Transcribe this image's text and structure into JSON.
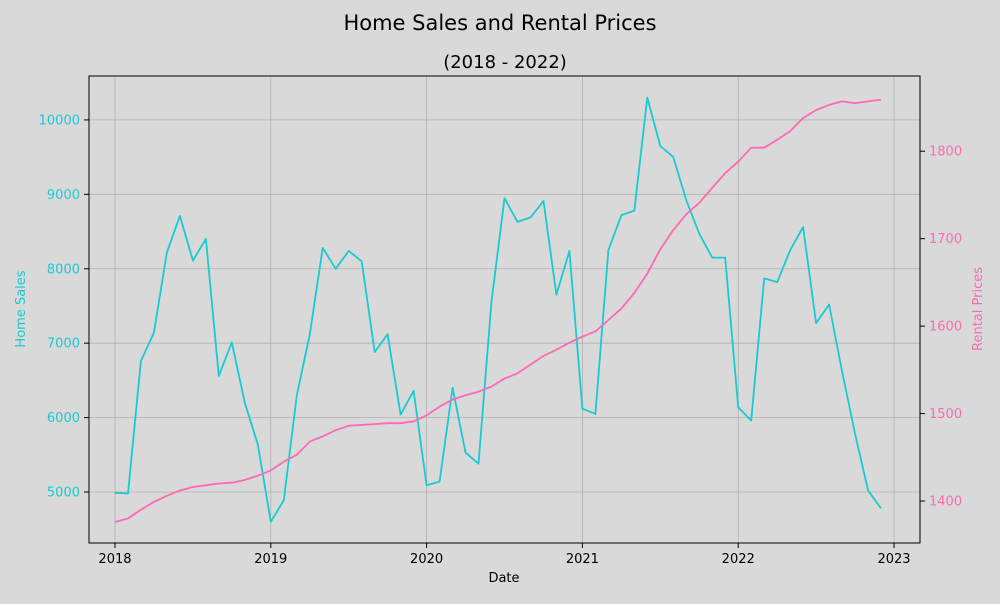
{
  "chart_data": {
    "type": "line",
    "title": "Home Sales and Rental Prices",
    "subtitle": "(2018 - 2022)",
    "xlabel": "Date",
    "x_ticks": [
      "2018",
      "2019",
      "2020",
      "2021",
      "2022",
      "2023"
    ],
    "x_range": [
      "2017-11",
      "2023-03"
    ],
    "grid": true,
    "x": [
      "2018-01",
      "2018-02",
      "2018-03",
      "2018-04",
      "2018-05",
      "2018-06",
      "2018-07",
      "2018-08",
      "2018-09",
      "2018-10",
      "2018-11",
      "2018-12",
      "2019-01",
      "2019-02",
      "2019-03",
      "2019-04",
      "2019-05",
      "2019-06",
      "2019-07",
      "2019-08",
      "2019-09",
      "2019-10",
      "2019-11",
      "2019-12",
      "2020-01",
      "2020-02",
      "2020-03",
      "2020-04",
      "2020-05",
      "2020-06",
      "2020-07",
      "2020-08",
      "2020-09",
      "2020-10",
      "2020-11",
      "2020-12",
      "2021-01",
      "2021-02",
      "2021-03",
      "2021-04",
      "2021-05",
      "2021-06",
      "2021-07",
      "2021-08",
      "2021-09",
      "2021-10",
      "2021-11",
      "2021-12",
      "2022-01",
      "2022-02",
      "2022-03",
      "2022-04",
      "2022-05",
      "2022-06",
      "2022-07",
      "2022-08",
      "2022-09",
      "2022-10",
      "2022-11",
      "2022-12"
    ],
    "series": [
      {
        "name": "Home Sales",
        "axis": "left",
        "color": "#17cbd3",
        "values": [
          4990,
          4980,
          6760,
          7140,
          8220,
          8710,
          8110,
          8400,
          6560,
          7010,
          6200,
          5640,
          4600,
          4890,
          6300,
          7110,
          8280,
          8000,
          8240,
          8100,
          6880,
          7120,
          6040,
          6360,
          5090,
          5140,
          6400,
          5530,
          5380,
          7560,
          8950,
          8630,
          8690,
          8910,
          7650,
          8240,
          6120,
          6050,
          8250,
          8720,
          8780,
          10300,
          9650,
          9500,
          8920,
          8470,
          8150,
          8150,
          6140,
          5960,
          7870,
          7820,
          8250,
          8560,
          7270,
          7520,
          6620,
          5780,
          5020,
          4780
        ]
      },
      {
        "name": "Rental Prices",
        "axis": "right",
        "color": "#ff69b4",
        "values": [
          1376,
          1380,
          1390,
          1399,
          1406,
          1412,
          1416,
          1418,
          1420,
          1421,
          1424,
          1429,
          1435,
          1445,
          1453,
          1468,
          1474,
          1481,
          1486,
          1487,
          1488,
          1489,
          1489,
          1491,
          1498,
          1508,
          1516,
          1521,
          1525,
          1531,
          1540,
          1546,
          1556,
          1566,
          1573,
          1581,
          1588,
          1594,
          1607,
          1620,
          1638,
          1660,
          1688,
          1710,
          1728,
          1741,
          1758,
          1775,
          1788,
          1804,
          1804,
          1813,
          1823,
          1838,
          1847,
          1853,
          1857,
          1855,
          1857,
          1859
        ]
      }
    ],
    "left_axis": {
      "label": "Home Sales",
      "color": "#17cbd3",
      "ticks": [
        5000,
        6000,
        7000,
        8000,
        9000,
        10000
      ],
      "ylim": [
        4315,
        10590
      ]
    },
    "right_axis": {
      "label": "Rental Prices",
      "color": "#ff69b4",
      "ticks": [
        1400,
        1500,
        1600,
        1700,
        1800
      ],
      "ylim": [
        1352,
        1886
      ]
    }
  }
}
